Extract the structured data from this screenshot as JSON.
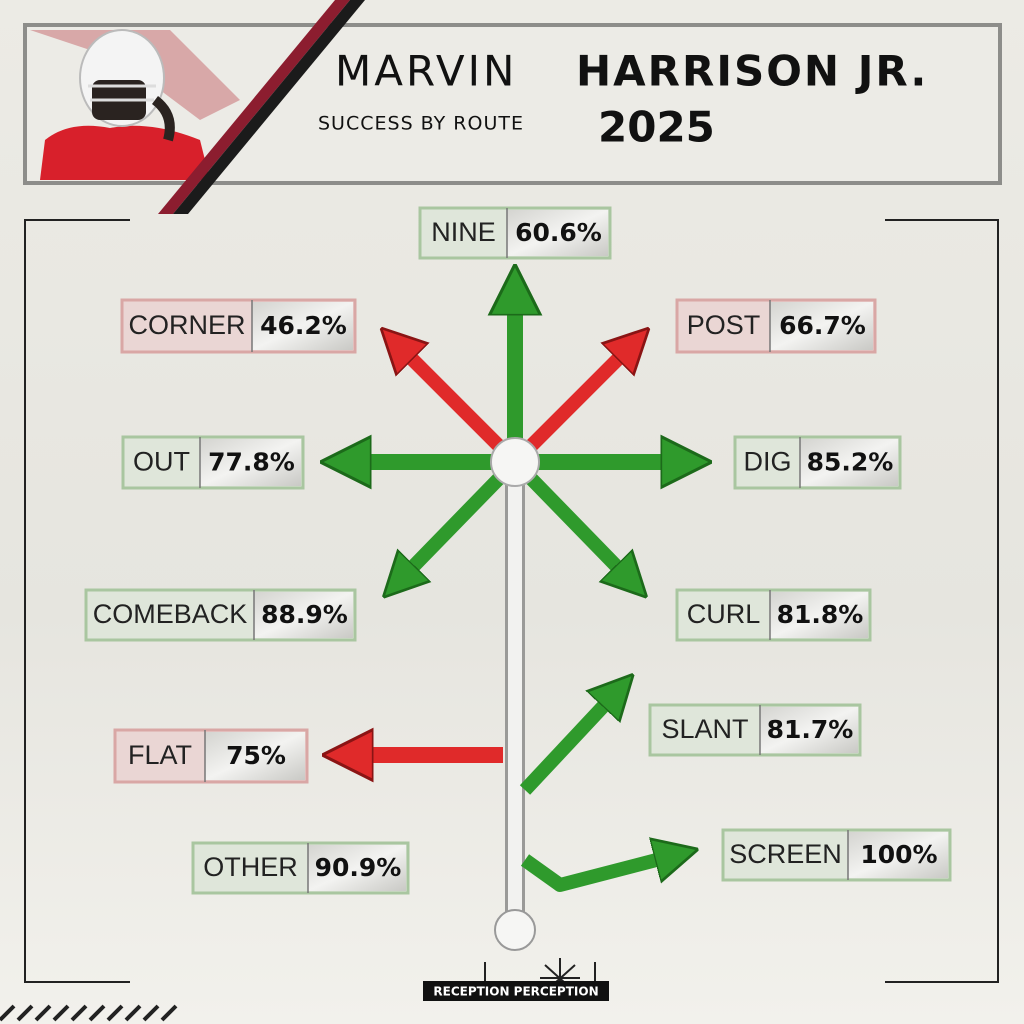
{
  "header": {
    "first_name": "MARVIN",
    "last_name": "HARRISON JR.",
    "subtitle": "SUCCESS BY ROUTE",
    "year": "2025"
  },
  "routes": [
    {
      "name": "NINE",
      "value": "60.6%"
    },
    {
      "name": "CORNER",
      "value": "46.2%"
    },
    {
      "name": "POST",
      "value": "66.7%"
    },
    {
      "name": "OUT",
      "value": "77.8%"
    },
    {
      "name": "DIG",
      "value": "85.2%"
    },
    {
      "name": "COMEBACK",
      "value": "88.9%"
    },
    {
      "name": "CURL",
      "value": "81.8%"
    },
    {
      "name": "FLAT",
      "value": "75%"
    },
    {
      "name": "SLANT",
      "value": "81.7%"
    },
    {
      "name": "OTHER",
      "value": "90.9%"
    },
    {
      "name": "SCREEN",
      "value": "100%"
    }
  ],
  "footer": {
    "logo": "RECEPTION PERCEPTION"
  }
}
